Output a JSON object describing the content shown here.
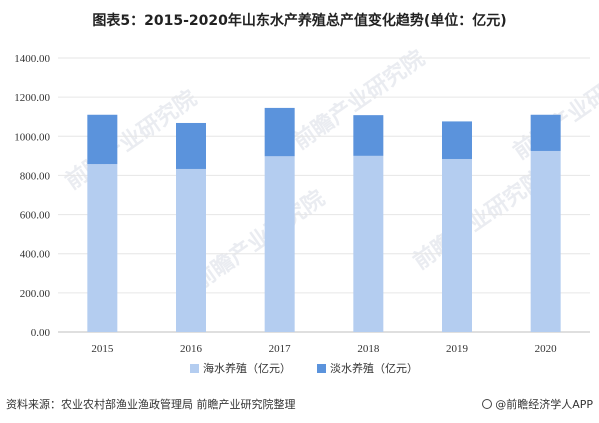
{
  "title": "图表5：2015-2020年山东水产养殖总产值变化趋势(单位：亿元)",
  "source": "资料来源：农业农村部渔业渔政管理局 前瞻产业研究院整理",
  "brand": "@前瞻经济学人APP",
  "watermark": "前瞻产业研究院",
  "colors": {
    "sea": "#b4cdf0",
    "fresh": "#5b93dc",
    "grid": "#e6e6e6"
  },
  "chart_data": {
    "type": "bar",
    "stacked": true,
    "categories": [
      "2015",
      "2016",
      "2017",
      "2018",
      "2019",
      "2020"
    ],
    "series": [
      {
        "name": "海水养殖（亿元）",
        "values": [
          858,
          833,
          898,
          900,
          884,
          925
        ]
      },
      {
        "name": "淡水养殖（亿元）",
        "values": [
          252,
          235,
          247,
          208,
          192,
          185
        ]
      }
    ],
    "ylim": [
      0,
      1400
    ],
    "yticks": [
      "0.00",
      "200.00",
      "400.00",
      "600.00",
      "800.00",
      "1000.00",
      "1200.00",
      "1400.00"
    ],
    "grid": true,
    "legend": "bottom"
  }
}
